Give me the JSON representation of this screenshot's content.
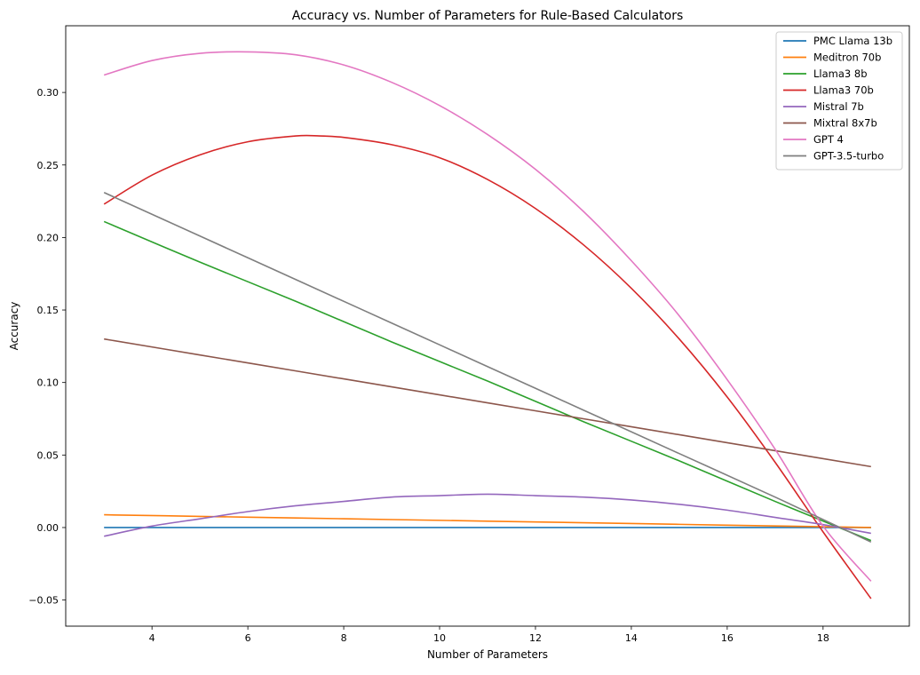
{
  "chart_data": {
    "type": "line",
    "title": "Accuracy vs. Number of Parameters for Rule-Based Calculators",
    "xlabel": "Number of Parameters",
    "ylabel": "Accuracy",
    "xlim": [
      2.2,
      19.8
    ],
    "ylim": [
      -0.068,
      0.346
    ],
    "xticks": [
      4,
      6,
      8,
      10,
      12,
      14,
      16,
      18
    ],
    "yticks": [
      -0.05,
      0.0,
      0.05,
      0.1,
      0.15,
      0.2,
      0.25,
      0.3
    ],
    "ytick_labels": [
      "−0.05",
      "0.00",
      "0.05",
      "0.10",
      "0.15",
      "0.20",
      "0.25",
      "0.30"
    ],
    "grid": false,
    "legend_position": "top-right",
    "series": [
      {
        "name": "PMC Llama 13b",
        "color": "#1f77b4",
        "x": [
          3,
          5,
          7,
          9,
          11,
          13,
          15,
          17,
          19
        ],
        "y": [
          0.0,
          0.0,
          0.0,
          0.0,
          0.0,
          0.0,
          0.0,
          0.0,
          0.0
        ]
      },
      {
        "name": "Meditron 70b",
        "color": "#ff7f0e",
        "x": [
          3,
          5,
          7,
          9,
          11,
          13,
          15,
          17,
          19
        ],
        "y": [
          0.0088,
          0.0077,
          0.0066,
          0.0055,
          0.0044,
          0.0033,
          0.0022,
          0.0011,
          0.0
        ]
      },
      {
        "name": "Llama3 8b",
        "color": "#2ca02c",
        "x": [
          3,
          5,
          7,
          9,
          11,
          13,
          15,
          17,
          19
        ],
        "y": [
          0.211,
          0.183,
          0.156,
          0.128,
          0.101,
          0.073,
          0.046,
          0.018,
          -0.009
        ]
      },
      {
        "name": "Llama3 70b",
        "color": "#d62728",
        "x": [
          3,
          4,
          5,
          6,
          7,
          7.5,
          8,
          9,
          10,
          11,
          12,
          13,
          14,
          15,
          16,
          17,
          18,
          19
        ],
        "y": [
          0.223,
          0.243,
          0.257,
          0.266,
          0.27,
          0.27,
          0.269,
          0.264,
          0.255,
          0.24,
          0.22,
          0.195,
          0.165,
          0.13,
          0.09,
          0.045,
          -0.003,
          -0.049
        ]
      },
      {
        "name": "Mistral 7b",
        "color": "#9467bd",
        "x": [
          3,
          4,
          5,
          6,
          7,
          8,
          9,
          10,
          11,
          12,
          13,
          14,
          15,
          16,
          17,
          18,
          19
        ],
        "y": [
          -0.006,
          0.001,
          0.006,
          0.011,
          0.015,
          0.018,
          0.021,
          0.022,
          0.023,
          0.022,
          0.021,
          0.019,
          0.016,
          0.012,
          0.007,
          0.002,
          -0.004
        ]
      },
      {
        "name": "Mixtral 8x7b",
        "color": "#8c564b",
        "x": [
          3,
          5,
          7,
          9,
          11,
          13,
          15,
          17,
          19
        ],
        "y": [
          0.13,
          0.119,
          0.108,
          0.097,
          0.086,
          0.075,
          0.064,
          0.053,
          0.042
        ]
      },
      {
        "name": "GPT 4",
        "color": "#e377c2",
        "x": [
          3,
          4,
          5,
          6,
          7,
          8,
          9,
          10,
          11,
          12,
          13,
          14,
          15,
          16,
          17,
          18,
          19
        ],
        "y": [
          0.312,
          0.322,
          0.327,
          0.328,
          0.326,
          0.319,
          0.307,
          0.291,
          0.271,
          0.247,
          0.218,
          0.184,
          0.146,
          0.102,
          0.054,
          0.001,
          -0.037
        ]
      },
      {
        "name": "GPT-3.5-turbo",
        "color": "#7f7f7f",
        "x": [
          3,
          5,
          7,
          9,
          11,
          13,
          15,
          17,
          19
        ],
        "y": [
          0.231,
          0.201,
          0.171,
          0.141,
          0.111,
          0.081,
          0.051,
          0.021,
          -0.01
        ]
      }
    ]
  }
}
